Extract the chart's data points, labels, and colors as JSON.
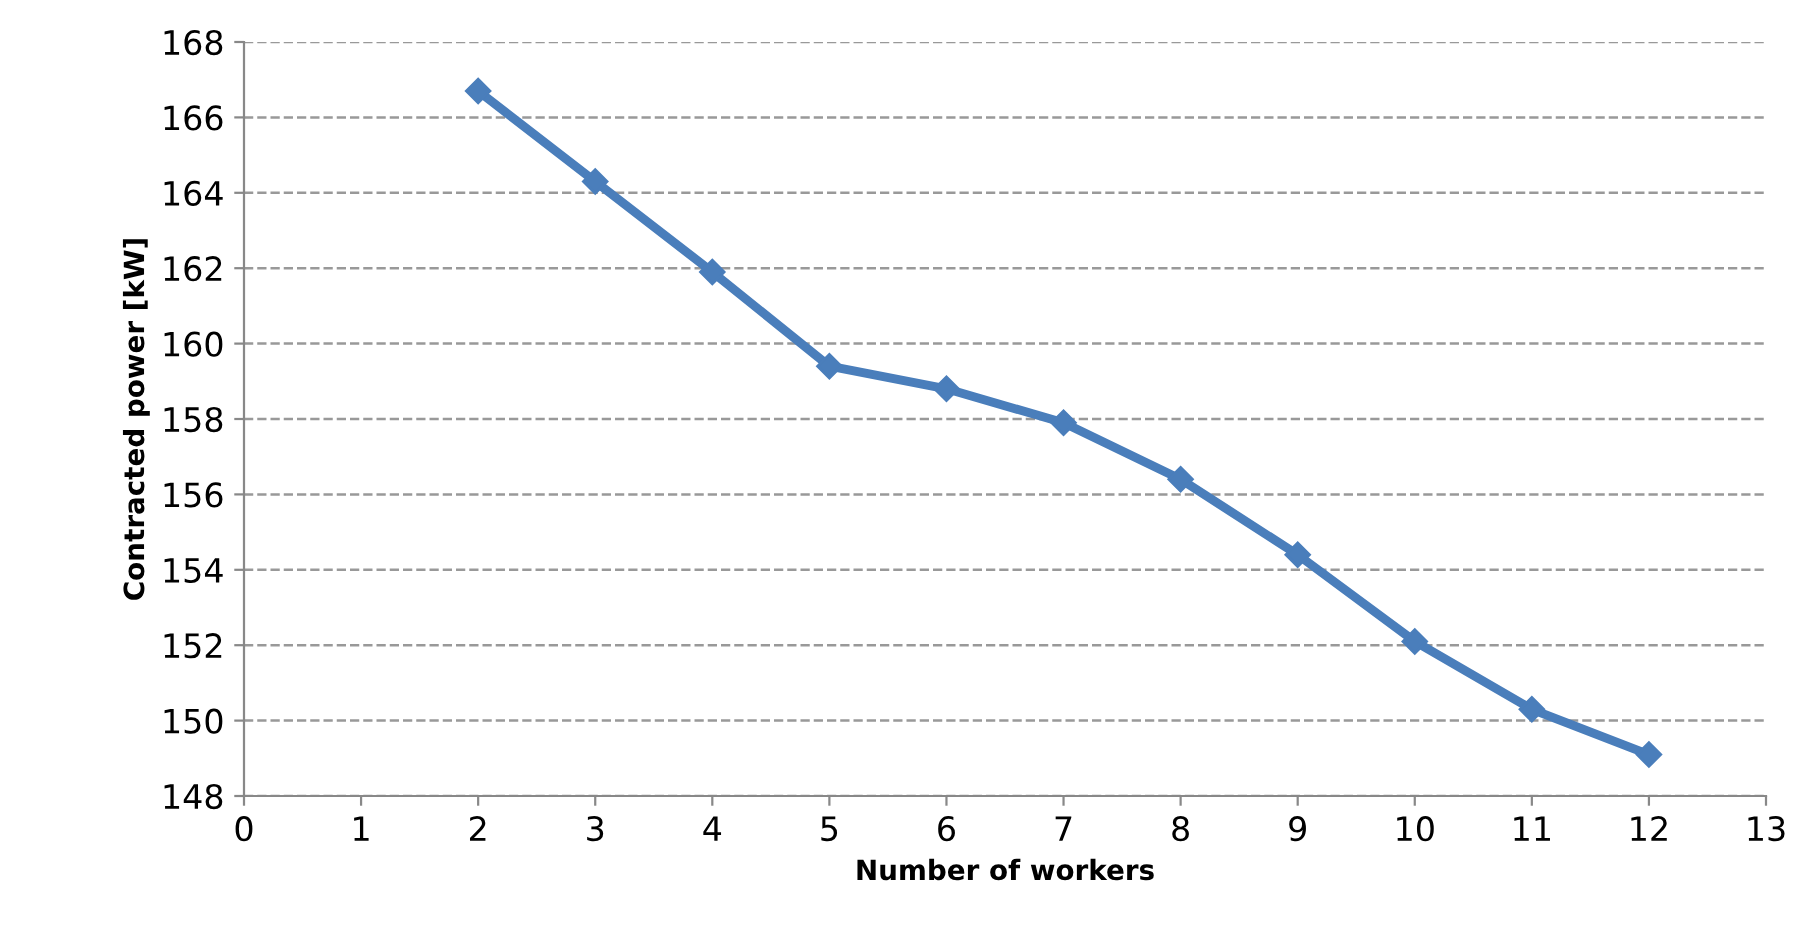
{
  "chart_data": {
    "type": "line",
    "xlabel": "Number of workers",
    "ylabel": "Contracted power [kW]",
    "x": [
      2,
      3,
      4,
      5,
      6,
      7,
      8,
      9,
      10,
      11,
      12
    ],
    "series": [
      {
        "color": "#4a7ebb",
        "values": [
          166.7,
          164.3,
          161.9,
          159.4,
          158.8,
          157.9,
          156.4,
          154.4,
          152.1,
          150.3,
          149.1
        ]
      }
    ],
    "xlim": [
      0,
      13
    ],
    "xticks": [
      0,
      1,
      2,
      3,
      4,
      5,
      6,
      7,
      8,
      9,
      10,
      11,
      12,
      13
    ],
    "ylim": [
      148,
      168
    ],
    "yticks": [
      148,
      150,
      152,
      154,
      156,
      158,
      160,
      162,
      164,
      166,
      168
    ],
    "grid": "y",
    "marker": "diamond",
    "line_style": "solid",
    "legend": false
  }
}
